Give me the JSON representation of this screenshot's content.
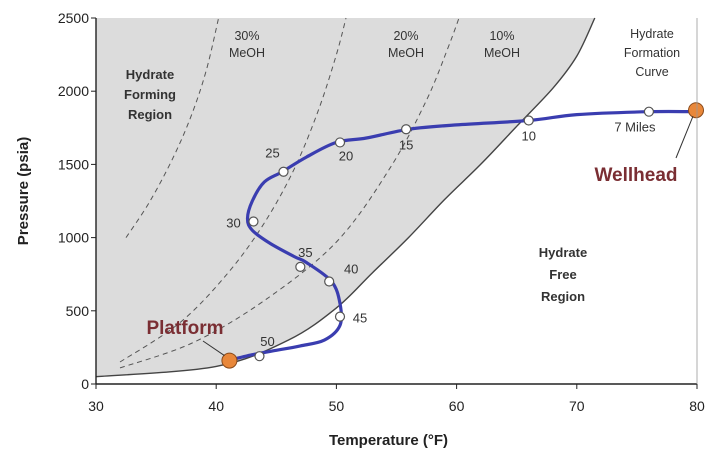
{
  "chart_data": {
    "type": "line",
    "xlabel": "Temperature (°F)",
    "ylabel": "Pressure (psia)",
    "xlim": [
      30,
      80
    ],
    "ylim": [
      0,
      2500
    ],
    "x_ticks": [
      "30",
      "40",
      "50",
      "60",
      "70",
      "80"
    ],
    "y_ticks": [
      "0",
      "500",
      "1000",
      "1500",
      "2000",
      "2500"
    ],
    "grid": false,
    "hydrate_curve": {
      "label_lines": [
        "Hydrate",
        "Formation",
        "Curve"
      ],
      "points": [
        [
          30,
          50
        ],
        [
          40,
          120
        ],
        [
          46,
          300
        ],
        [
          50,
          520
        ],
        [
          53,
          760
        ],
        [
          56,
          1000
        ],
        [
          59,
          1260
        ],
        [
          62,
          1500
        ],
        [
          65,
          1760
        ],
        [
          68,
          2020
        ],
        [
          70,
          2240
        ],
        [
          71.5,
          2500
        ]
      ]
    },
    "methanol_curves": [
      {
        "label_lines": [
          "30%",
          "MeOH"
        ],
        "points": [
          [
            32.5,
            1000
          ],
          [
            34.5,
            1250
          ],
          [
            36.5,
            1560
          ],
          [
            38,
            1850
          ],
          [
            39.2,
            2150
          ],
          [
            40.2,
            2500
          ]
        ]
      },
      {
        "label_lines": [
          "20%",
          "MeOH"
        ],
        "points": [
          [
            32,
            150
          ],
          [
            37,
            420
          ],
          [
            41,
            760
          ],
          [
            44,
            1100
          ],
          [
            46.5,
            1470
          ],
          [
            48.5,
            1870
          ],
          [
            50,
            2250
          ],
          [
            50.8,
            2500
          ]
        ]
      },
      {
        "label_lines": [
          "10%",
          "MeOH"
        ],
        "points": [
          [
            32,
            110
          ],
          [
            38,
            280
          ],
          [
            44,
            570
          ],
          [
            50,
            970
          ],
          [
            54.5,
            1480
          ],
          [
            57.5,
            1940
          ],
          [
            59.3,
            2300
          ],
          [
            60.2,
            2500
          ]
        ]
      }
    ],
    "pipeline": {
      "points": [
        [
          41,
          160
        ],
        [
          43,
          200
        ],
        [
          45,
          230
        ],
        [
          47,
          260
        ],
        [
          49,
          300
        ],
        [
          50.3,
          400
        ],
        [
          50.3,
          550
        ],
        [
          49.6,
          700
        ],
        [
          47.5,
          830
        ],
        [
          46.5,
          870
        ],
        [
          44.5,
          960
        ],
        [
          43,
          1050
        ],
        [
          42.6,
          1130
        ],
        [
          43,
          1250
        ],
        [
          44,
          1380
        ],
        [
          45.5,
          1450
        ],
        [
          47.5,
          1550
        ],
        [
          50,
          1650
        ],
        [
          52.5,
          1680
        ],
        [
          56,
          1740
        ],
        [
          60,
          1770
        ],
        [
          66,
          1800
        ],
        [
          70,
          1840
        ],
        [
          76,
          1860
        ],
        [
          80,
          1860
        ]
      ],
      "markers": [
        {
          "x": 43.6,
          "y": 190,
          "label": "50"
        },
        {
          "x": 50.3,
          "y": 460,
          "label": "45"
        },
        {
          "x": 49.4,
          "y": 700,
          "label": "40"
        },
        {
          "x": 47,
          "y": 800,
          "label": "35"
        },
        {
          "x": 43.1,
          "y": 1110,
          "label": "30"
        },
        {
          "x": 45.6,
          "y": 1450,
          "label": "25"
        },
        {
          "x": 50.3,
          "y": 1650,
          "label": "20"
        },
        {
          "x": 55.8,
          "y": 1740,
          "label": "15"
        },
        {
          "x": 66,
          "y": 1800,
          "label": "10"
        },
        {
          "x": 76,
          "y": 1860,
          "label": "7 Miles"
        }
      ],
      "start": {
        "x": 41.1,
        "y": 160,
        "label": "Platform"
      },
      "end": {
        "x": 80,
        "y": 1870,
        "label": "Wellhead"
      }
    },
    "regions": [
      {
        "label_lines": [
          "Hydrate",
          "Forming",
          "Region"
        ]
      },
      {
        "label_lines": [
          "Hydrate",
          "Free",
          "Region"
        ]
      }
    ],
    "colors": {
      "hydrate_region": "#dcdcdc",
      "pipeline": "#3a3db0",
      "endpoint": "#e8873a",
      "endpoint_label": "#7a2e33"
    }
  }
}
